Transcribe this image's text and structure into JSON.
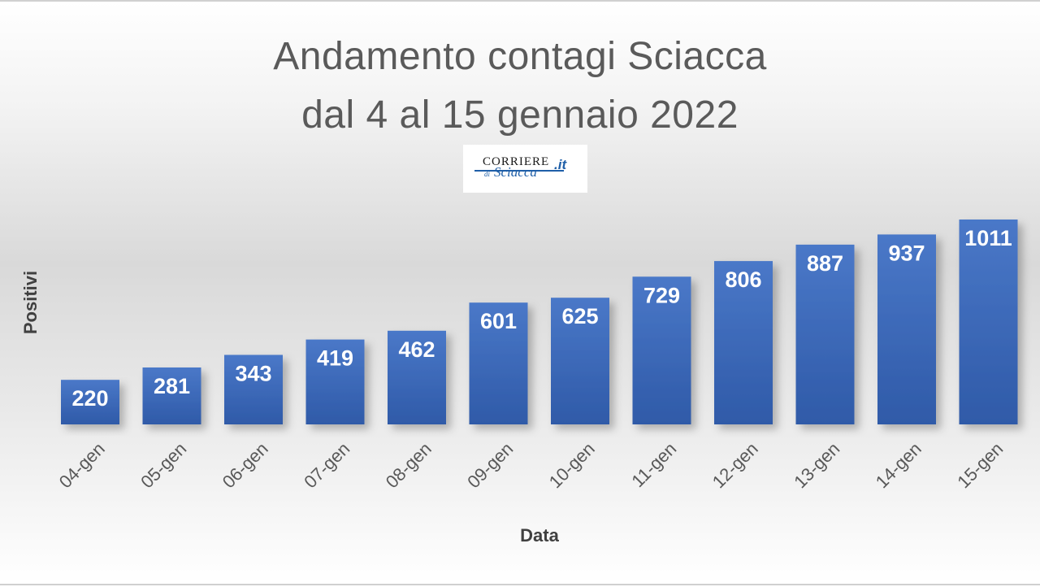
{
  "chart_data": {
    "type": "bar",
    "title": [
      "Andamento contagi Sciacca",
      "dal 4 al 15 gennaio 2022"
    ],
    "xlabel": "Data",
    "ylabel": "Positivi",
    "categories": [
      "04-gen",
      "05-gen",
      "06-gen",
      "07-gen",
      "08-gen",
      "09-gen",
      "10-gen",
      "11-gen",
      "12-gen",
      "13-gen",
      "14-gen",
      "15-gen"
    ],
    "values": [
      220,
      281,
      343,
      419,
      462,
      601,
      625,
      729,
      806,
      887,
      937,
      1011
    ],
    "ylim": [
      0,
      1011
    ],
    "grid": false,
    "legend": "none",
    "bar_color": "#3f6fc1",
    "data_label_color": "#ffffff"
  },
  "logo": {
    "top": "CORRIERE",
    "di": "di",
    "bottom": "Sciacca",
    "suffix": ".it"
  }
}
